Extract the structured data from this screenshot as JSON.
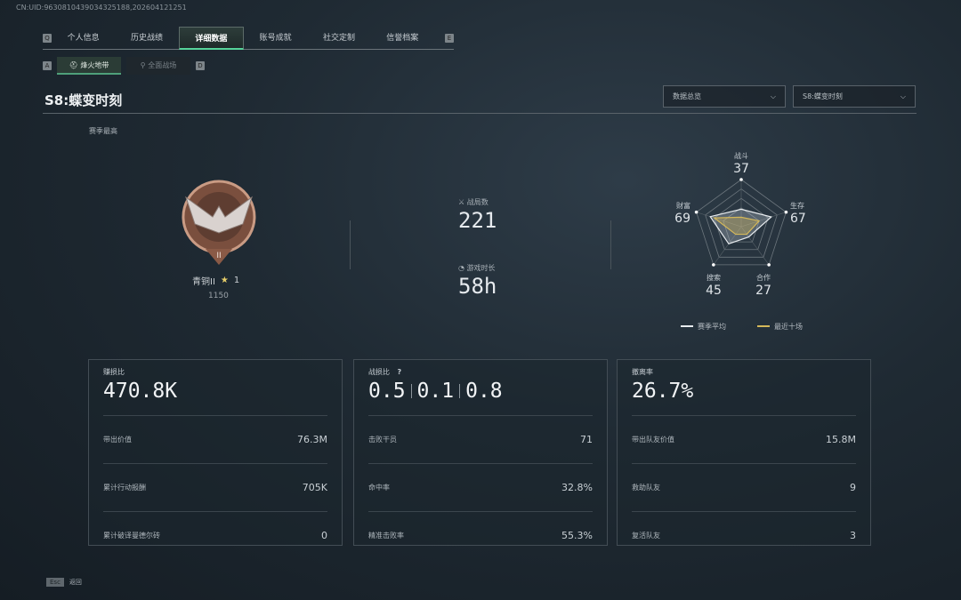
{
  "uid": "CN:UID:9630810439034325188,202604121251",
  "tabs": [
    "个人信息",
    "历史战绩",
    "详细数据",
    "账号成就",
    "社交定制",
    "信誉档案"
  ],
  "tab_keys": [
    "Q",
    "E"
  ],
  "subtabs": [
    "烽火地带",
    "全面战场"
  ],
  "subtab_keys": [
    "A",
    "D"
  ],
  "season_title": "S8:蝶变时刻",
  "dropdowns": [
    "数据总览",
    "S8:蝶变时刻"
  ],
  "rank": {
    "heading": "赛季最高",
    "name": "青铜II",
    "stars": "1",
    "score": "1150",
    "badge": "II"
  },
  "stats": {
    "matches_label": "战局数",
    "matches": "221",
    "time_label": "游戏时长",
    "time": "58h"
  },
  "chart_data": {
    "type": "radar",
    "axes": [
      "战斗",
      "生存",
      "合作",
      "搜索",
      "财富"
    ],
    "values": [
      37,
      67,
      27,
      45,
      69
    ],
    "series": [
      {
        "name": "赛季平均",
        "color": "#e8ecef",
        "values": [
          37,
          67,
          27,
          45,
          69
        ]
      },
      {
        "name": "最近十场",
        "color": "#d4b85a",
        "values": [
          20,
          40,
          20,
          20,
          60
        ]
      }
    ],
    "max": 100
  },
  "cards": [
    {
      "label": "赚损比",
      "value": "470.8K",
      "rows": [
        [
          "带出价值",
          "76.3M"
        ],
        [
          "累计行动报酬",
          "705K"
        ],
        [
          "累计破译曼德尔砖",
          "0"
        ]
      ]
    },
    {
      "label": "战损比",
      "help": "?",
      "values": [
        "0.5",
        "0.1",
        "0.8"
      ],
      "rows": [
        [
          "击败干员",
          "71"
        ],
        [
          "命中率",
          "32.8%"
        ],
        [
          "精准击败率",
          "55.3%"
        ]
      ]
    },
    {
      "label": "撤离率",
      "value": "26.7%",
      "rows": [
        [
          "带出队友价值",
          "15.8M"
        ],
        [
          "救助队友",
          "9"
        ],
        [
          "复活队友",
          "3"
        ]
      ]
    }
  ],
  "footer": {
    "key": "Esc",
    "label": "返回"
  },
  "colors": {
    "accent": "#56d39a",
    "recent": "#d4b85a"
  }
}
